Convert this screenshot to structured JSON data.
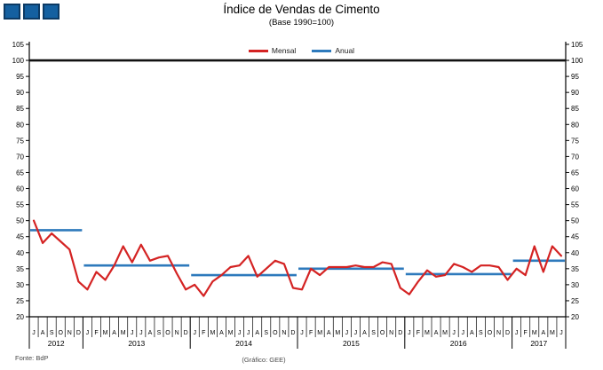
{
  "header": {
    "title": "Índice de Vendas de Cimento",
    "subtitle": "(Base 1990=100)"
  },
  "logo": {
    "squares": 3,
    "fill": "#1460a0",
    "border": "#0c3a64"
  },
  "legend": {
    "items": [
      {
        "label": "Mensal",
        "color": "#d42323"
      },
      {
        "label": "Anual",
        "color": "#2e7abc"
      }
    ]
  },
  "footer": {
    "source": "Fonte: BdP",
    "credit": "(Gráfico: GEE)"
  },
  "chart_data": {
    "type": "line",
    "title": "Índice de Vendas de Cimento",
    "subtitle": "(Base 1990=100)",
    "xlabel": "",
    "ylabel": "",
    "ylim": [
      20,
      105
    ],
    "ytick_step": 5,
    "dual_y_axis": true,
    "grid": false,
    "legend_position": "top-center",
    "reference_line": {
      "label": "Base 1990=100",
      "value": 100,
      "color": "#111111"
    },
    "series": [
      {
        "name": "Mensal",
        "style": "monthly-line",
        "color": "#d42323"
      },
      {
        "name": "Anual",
        "style": "annual-segments",
        "color": "#2e7abc"
      }
    ],
    "years": [
      {
        "label": "2012",
        "months": [
          "J",
          "A",
          "S",
          "O",
          "N",
          "D"
        ],
        "mensal": [
          50,
          43,
          46,
          43.5,
          41,
          31
        ],
        "anual": 47
      },
      {
        "label": "2013",
        "months": [
          "J",
          "F",
          "M",
          "A",
          "M",
          "J",
          "J",
          "A",
          "S",
          "O",
          "N",
          "D"
        ],
        "mensal": [
          28.5,
          34,
          31.5,
          36,
          42,
          37,
          42.5,
          37.5,
          38.5,
          39,
          33.5,
          28.5
        ],
        "anual": 36
      },
      {
        "label": "2014",
        "months": [
          "J",
          "F",
          "M",
          "A",
          "M",
          "J",
          "J",
          "A",
          "S",
          "O",
          "N",
          "D"
        ],
        "mensal": [
          30,
          26.5,
          31,
          33,
          35.5,
          36,
          39,
          32.5,
          35,
          37.5,
          36.5,
          29
        ],
        "anual": 33
      },
      {
        "label": "2015",
        "months": [
          "J",
          "F",
          "M",
          "A",
          "M",
          "J",
          "J",
          "A",
          "S",
          "O",
          "N",
          "D"
        ],
        "mensal": [
          28.5,
          35,
          33,
          35.5,
          35.5,
          35.5,
          36,
          35.5,
          35.5,
          37,
          36.5,
          29
        ],
        "anual": 35
      },
      {
        "label": "2016",
        "months": [
          "J",
          "F",
          "M",
          "A",
          "M",
          "J",
          "J",
          "A",
          "S",
          "O",
          "N",
          "D"
        ],
        "mensal": [
          27,
          31,
          34.5,
          32.5,
          33,
          36.5,
          35.5,
          34,
          36,
          36,
          35.5,
          31.5
        ],
        "anual": 33.3
      },
      {
        "label": "2017",
        "months": [
          "J",
          "F",
          "M",
          "A",
          "M",
          "J"
        ],
        "mensal": [
          35,
          33,
          42,
          34,
          42,
          39
        ],
        "anual": 37.5
      }
    ]
  }
}
